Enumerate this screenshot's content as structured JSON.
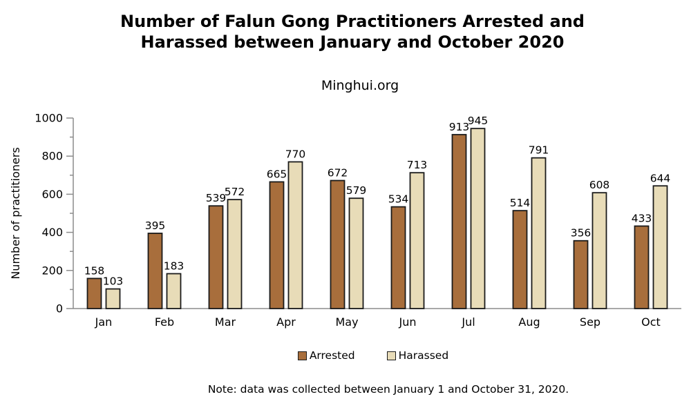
{
  "title": {
    "line1": "Number of Falun Gong Practitioners Arrested and",
    "line2": "Harassed between January and October 2020"
  },
  "subtitle": "Minghui.org",
  "note": "Note: data was collected between January 1 and October 31, 2020.",
  "colors": {
    "arrested": "#A86E3C",
    "harassed": "#E8DCB8",
    "bar_border": "#1a1a1a",
    "axis": "#8c8c8c",
    "text": "#000000"
  },
  "chart_data": {
    "type": "bar",
    "categories": [
      "Jan",
      "Feb",
      "Mar",
      "Apr",
      "May",
      "Jun",
      "Jul",
      "Aug",
      "Sep",
      "Oct"
    ],
    "series": [
      {
        "name": "Arrested",
        "color": "#A86E3C",
        "values": [
          158,
          395,
          539,
          665,
          672,
          534,
          913,
          514,
          356,
          433
        ]
      },
      {
        "name": "Harassed",
        "color": "#E8DCB8",
        "values": [
          103,
          183,
          572,
          770,
          579,
          713,
          945,
          791,
          608,
          644
        ]
      }
    ],
    "title": "Number of Falun Gong Practitioners Arrested and Harassed between January and October 2020",
    "subtitle": "Minghui.org",
    "xlabel": "",
    "ylabel": "Number of practitioners",
    "ylim": [
      0,
      1000
    ],
    "ytick_step": 200,
    "minor_tick_step": 100,
    "yticks": [
      0,
      200,
      400,
      600,
      800,
      1000
    ],
    "grid": false,
    "value_labels": true,
    "legend_position": "bottom"
  }
}
